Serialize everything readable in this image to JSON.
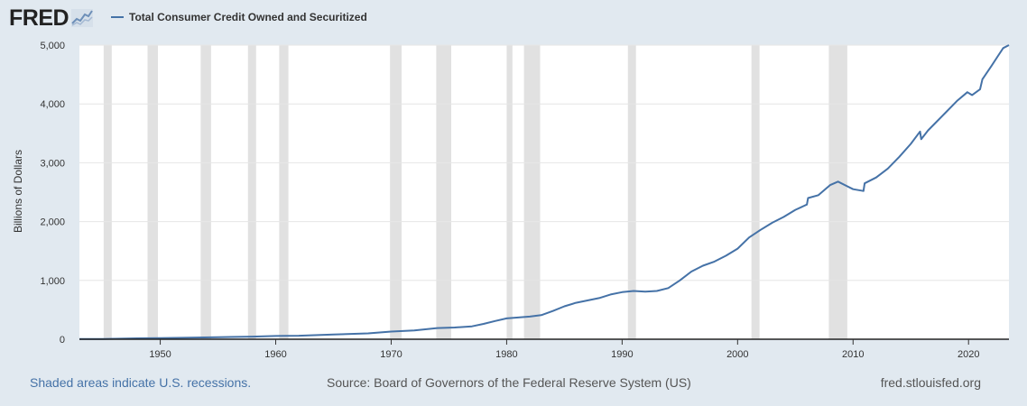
{
  "header": {
    "logo": "FRED",
    "logo_icon": "chart-line-icon"
  },
  "footer": {
    "recessions_note": "Shaded areas indicate U.S. recessions.",
    "source": "Source: Board of Governors of the Federal Reserve System (US)",
    "site": "fred.stlouisfed.org"
  },
  "colors": {
    "series": "#4572a7",
    "recession": "#e1e1e1",
    "background": "#e1e9f0",
    "plot_background": "#ffffff"
  },
  "chart_data": {
    "type": "line",
    "title": "",
    "xlabel": "",
    "ylabel": "Billions of Dollars",
    "ylim": [
      0,
      5000
    ],
    "xlim": [
      1943,
      2023.5
    ],
    "grid": true,
    "legend": "top-left",
    "y_ticks": [
      0,
      1000,
      2000,
      3000,
      4000,
      5000
    ],
    "y_tick_labels": [
      "0",
      "1,000",
      "2,000",
      "3,000",
      "4,000",
      "5,000"
    ],
    "x_ticks": [
      1950,
      1960,
      1970,
      1980,
      1990,
      2000,
      2010,
      2020
    ],
    "x_tick_labels": [
      "1950",
      "1960",
      "1970",
      "1980",
      "1990",
      "2000",
      "2010",
      "2020"
    ],
    "recessions": [
      [
        1945.1,
        1945.8
      ],
      [
        1948.9,
        1949.8
      ],
      [
        1953.5,
        1954.4
      ],
      [
        1957.6,
        1958.3
      ],
      [
        1960.3,
        1961.1
      ],
      [
        1969.9,
        1970.9
      ],
      [
        1973.9,
        1975.2
      ],
      [
        1980.0,
        1980.5
      ],
      [
        1981.5,
        1982.9
      ],
      [
        1990.5,
        1991.2
      ],
      [
        2001.2,
        2001.9
      ],
      [
        2007.9,
        2009.5
      ]
    ],
    "series": [
      {
        "name": "Total Consumer Credit Owned and Securitized",
        "x": [
          1943.0,
          1945.0,
          1946.0,
          1948.0,
          1950.0,
          1952.0,
          1955.0,
          1958.0,
          1960.0,
          1962.0,
          1965.0,
          1968.0,
          1970.0,
          1972.0,
          1974.0,
          1975.5,
          1977.0,
          1978.0,
          1979.0,
          1980.0,
          1981.0,
          1982.0,
          1983.0,
          1984.0,
          1985.0,
          1986.0,
          1987.0,
          1988.0,
          1989.0,
          1990.0,
          1991.0,
          1992.0,
          1993.0,
          1994.0,
          1995.0,
          1996.0,
          1997.0,
          1998.0,
          1999.0,
          2000.0,
          2001.0,
          2002.0,
          2003.0,
          2004.0,
          2005.0,
          2006.0,
          2006.1,
          2007.0,
          2008.0,
          2008.7,
          2009.5,
          2010.0,
          2010.9,
          2011.0,
          2012.0,
          2013.0,
          2014.0,
          2015.0,
          2015.8,
          2015.9,
          2016.5,
          2017.0,
          2018.0,
          2019.0,
          2019.9,
          2020.3,
          2021.0,
          2021.2,
          2021.3,
          2022.0,
          2022.5,
          2023.0,
          2023.5
        ],
        "values": [
          5,
          5,
          8,
          15,
          20,
          25,
          35,
          45,
          55,
          60,
          80,
          100,
          130,
          150,
          190,
          200,
          220,
          260,
          310,
          355,
          370,
          385,
          410,
          480,
          560,
          620,
          660,
          700,
          760,
          800,
          820,
          810,
          820,
          870,
          1000,
          1150,
          1250,
          1320,
          1420,
          1540,
          1730,
          1860,
          1980,
          2080,
          2200,
          2290,
          2400,
          2450,
          2620,
          2680,
          2600,
          2550,
          2520,
          2650,
          2750,
          2900,
          3100,
          3320,
          3530,
          3400,
          3550,
          3650,
          3850,
          4050,
          4200,
          4150,
          4250,
          4420,
          4450,
          4650,
          4800,
          4950,
          5000
        ]
      }
    ]
  }
}
